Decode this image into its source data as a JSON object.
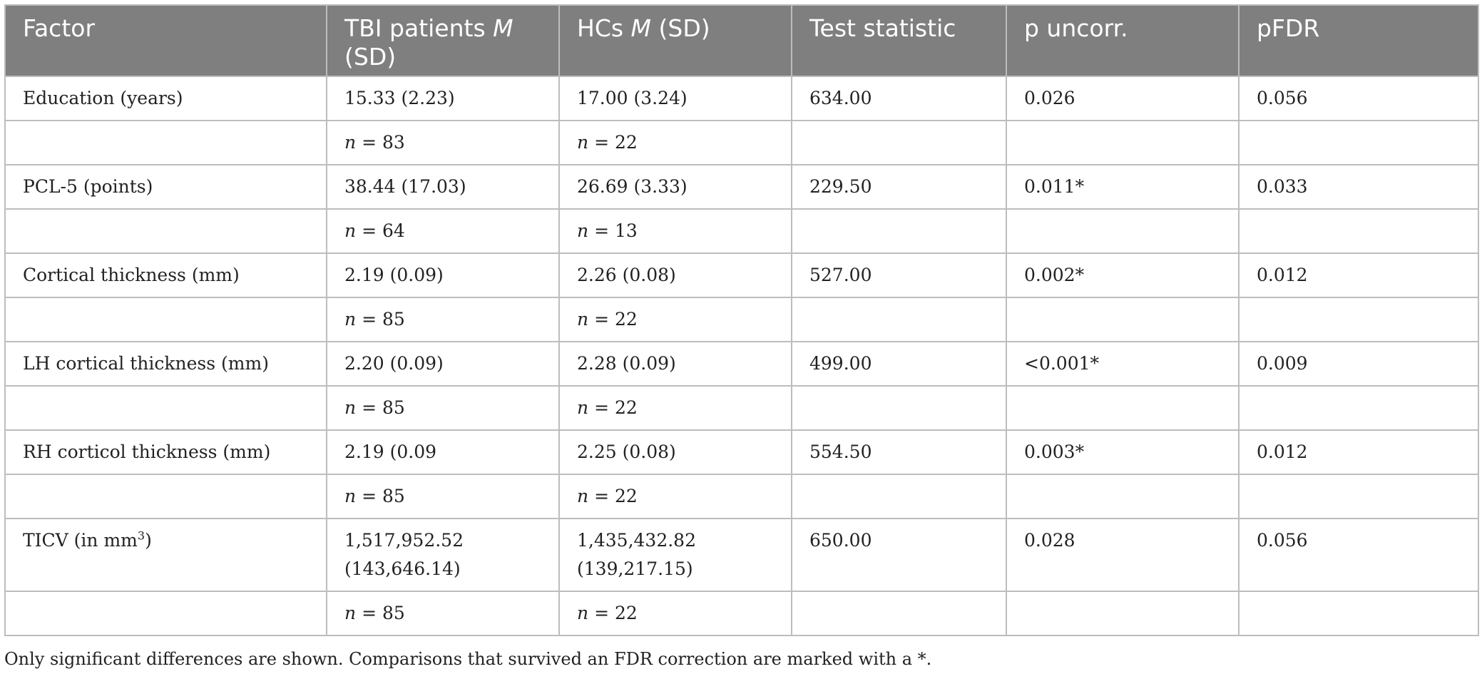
{
  "table": {
    "headers": {
      "factor": "Factor",
      "tbi_prefix": "TBI patients ",
      "tbi_m": "M",
      "tbi_suffix": " (SD)",
      "hcs_prefix": "HCs ",
      "hcs_m": "M",
      "hcs_suffix": " (SD)",
      "test": "Test statistic",
      "p_uncorr": "p uncorr.",
      "pfdr": "pFDR"
    },
    "n_label": "n",
    "rows": [
      {
        "factor": "Education (years)",
        "tbi": "15.33 (2.23)",
        "hcs": "17.00 (3.24)",
        "test": "634.00",
        "p": "0.026",
        "pfdr": "0.056",
        "tbi_n": "= 83",
        "hcs_n": "= 22"
      },
      {
        "factor": "PCL-5 (points)",
        "tbi": "38.44 (17.03)",
        "hcs": "26.69 (3.33)",
        "test": "229.50",
        "p": "0.011*",
        "pfdr": "0.033",
        "tbi_n": "= 64",
        "hcs_n": "= 13"
      },
      {
        "factor": "Cortical thickness (mm)",
        "tbi": "2.19 (0.09)",
        "hcs": "2.26 (0.08)",
        "test": "527.00",
        "p": "0.002*",
        "pfdr": "0.012",
        "tbi_n": "= 85",
        "hcs_n": "= 22"
      },
      {
        "factor": "LH cortical thickness (mm)",
        "tbi": "2.20 (0.09)",
        "hcs": "2.28 (0.09)",
        "test": "499.00",
        "p": "<0.001*",
        "pfdr": "0.009",
        "tbi_n": "= 85",
        "hcs_n": "= 22"
      },
      {
        "factor": "RH corticol thickness (mm)",
        "tbi": "2.19 (0.09",
        "hcs": "2.25 (0.08)",
        "test": "554.50",
        "p": "0.003*",
        "pfdr": "0.012",
        "tbi_n": "= 85",
        "hcs_n": "= 22"
      },
      {
        "factor_prefix": "TICV (in mm",
        "factor_sup": "3",
        "factor_suffix": ")",
        "tbi_line1": "1,517,952.52",
        "tbi_line2": "(143,646.14)",
        "hcs_line1": "1,435,432.82",
        "hcs_line2": "(139,217.15)",
        "test": "650.00",
        "p": "0.028",
        "pfdr": "0.056",
        "tbi_n": "= 85",
        "hcs_n": "= 22"
      }
    ]
  },
  "footnote": "Only significant differences are shown. Comparisons that survived an FDR correction are marked with a *."
}
